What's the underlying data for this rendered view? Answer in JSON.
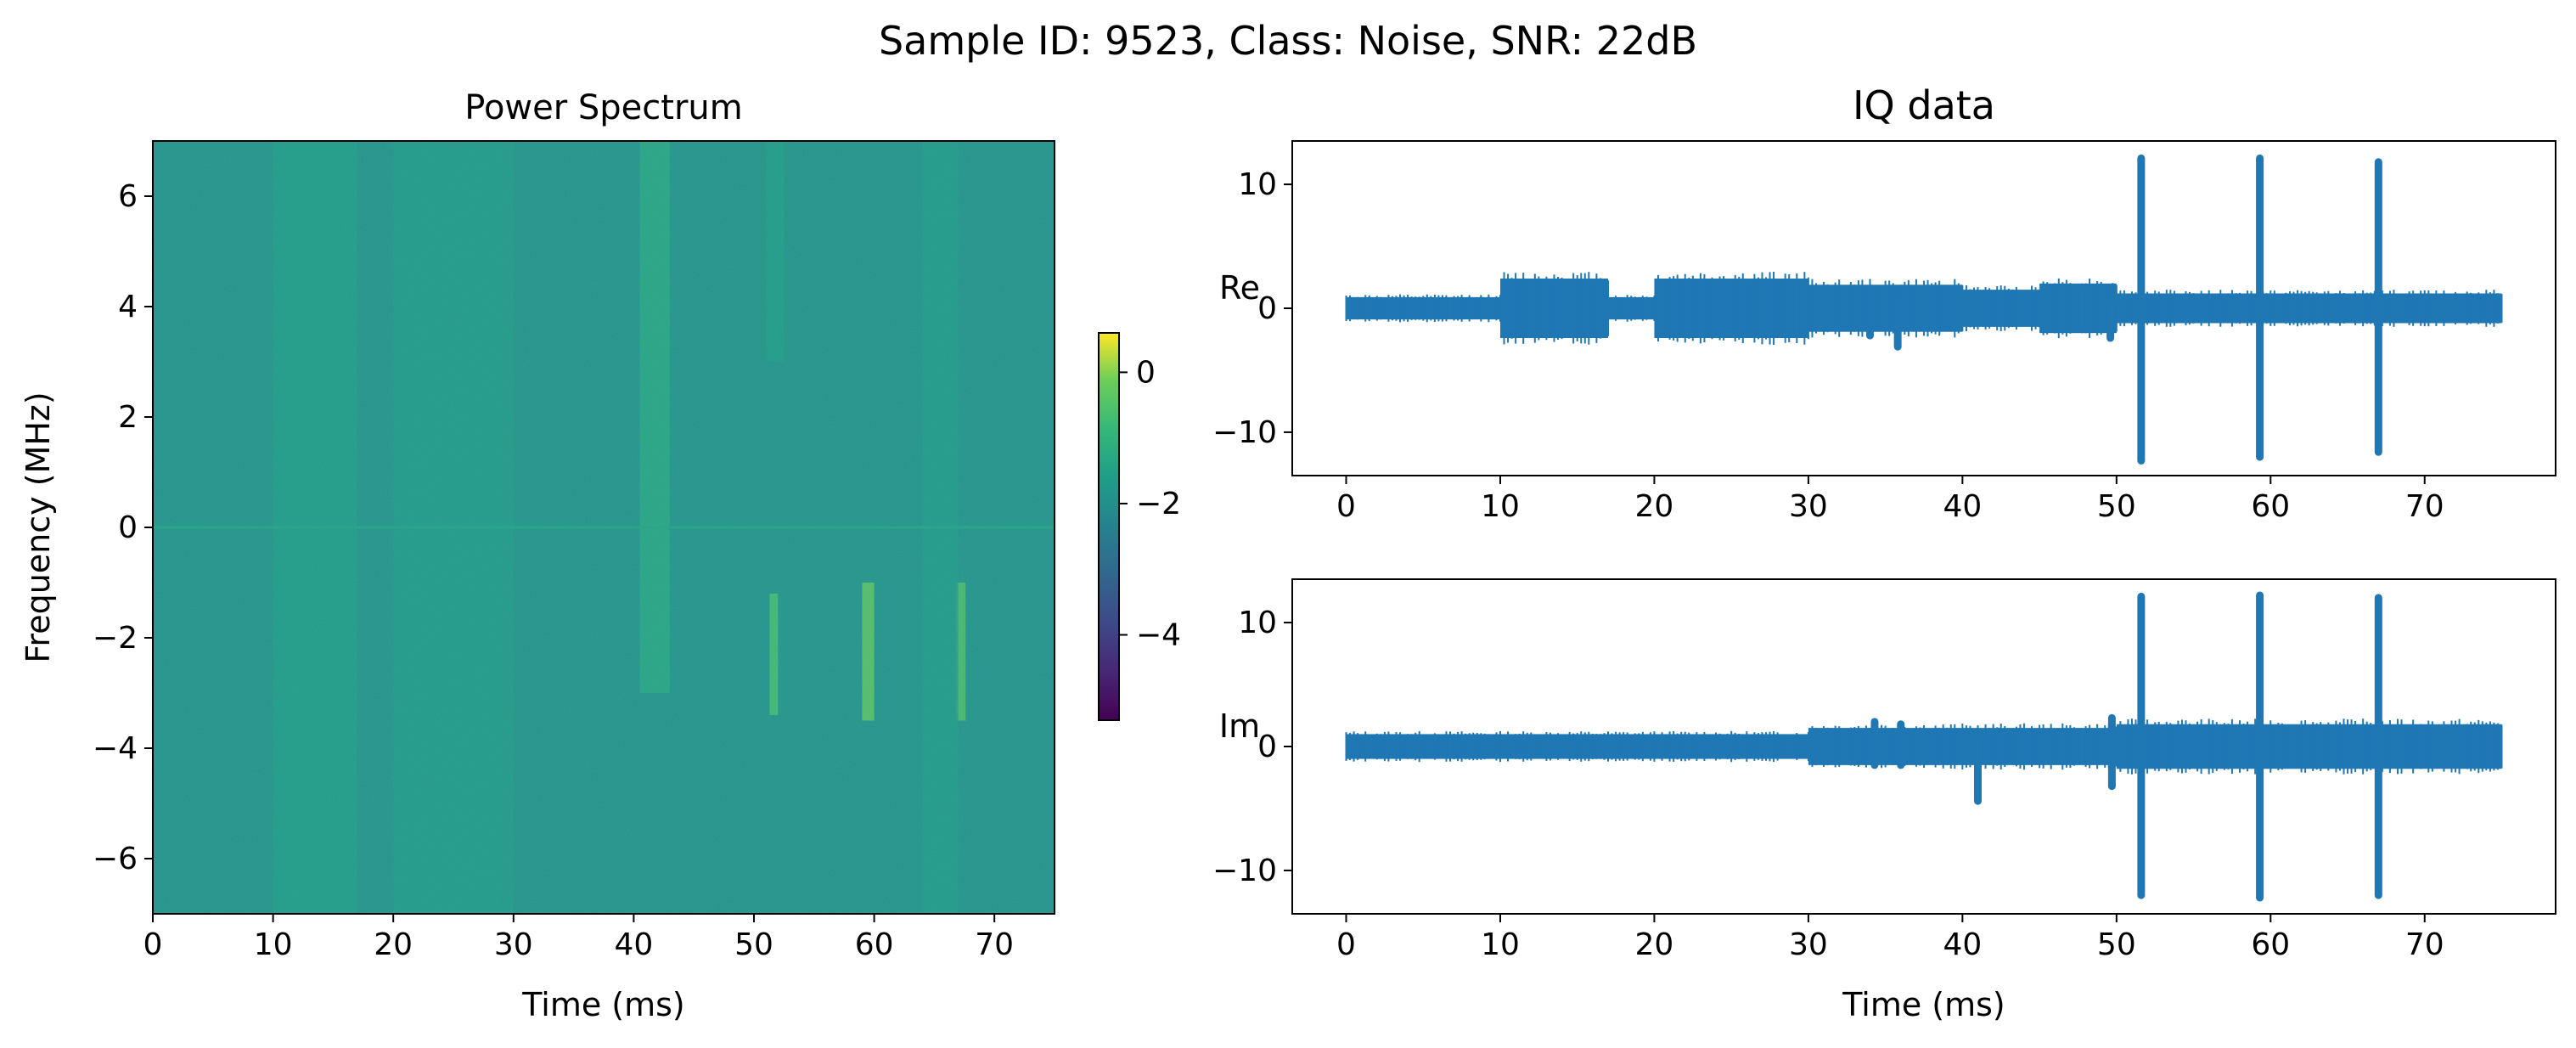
{
  "figure": {
    "suptitle": "Sample ID: 9523, Class: Noise, SNR: 22dB"
  },
  "colors": {
    "series": "#1f77b4",
    "spectrum_base": "#238a8d"
  },
  "chart_data": [
    {
      "type": "heatmap",
      "title": "Power Spectrum",
      "xlabel": "Time (ms)",
      "ylabel": "Frequency (MHz)",
      "xlim": [
        0,
        75
      ],
      "ylim": [
        -7,
        7
      ],
      "xticks": [
        "0",
        "10",
        "20",
        "30",
        "40",
        "50",
        "60",
        "70"
      ],
      "yticks": [
        "6",
        "4",
        "2",
        "0",
        "−2",
        "−4",
        "−6"
      ],
      "colormap": "viridis",
      "colorbar": {
        "range": [
          -5.3,
          0.6
        ],
        "ticks": [
          "0",
          "−2",
          "−4"
        ]
      },
      "background_level": -1.9,
      "bands": [
        {
          "t0": 10,
          "t1": 17,
          "f0": -7,
          "f1": 7,
          "level": -1.6
        },
        {
          "t0": 20,
          "t1": 30,
          "f0": -7,
          "f1": 7,
          "level": -1.7
        },
        {
          "t0": 40.5,
          "t1": 43,
          "f0": -3,
          "f1": 7,
          "level": -1.3
        },
        {
          "t0": 51,
          "t1": 52.5,
          "f0": 3,
          "f1": 7,
          "level": -1.6
        },
        {
          "t0": 51.3,
          "t1": 52,
          "f0": -3.4,
          "f1": -1.2,
          "level": -0.6
        },
        {
          "t0": 59,
          "t1": 60,
          "f0": -3.5,
          "f1": -1,
          "level": -0.3
        },
        {
          "t0": 66.8,
          "t1": 67.6,
          "f0": -3.5,
          "f1": -1,
          "level": -0.5
        },
        {
          "t0": 64,
          "t1": 67,
          "f0": -7,
          "f1": 7,
          "level": -1.7
        }
      ]
    },
    {
      "type": "line",
      "title": "IQ data",
      "ylabel": "Re",
      "xlim": [
        -3.5,
        78.5
      ],
      "ylim": [
        -13.5,
        13.5
      ],
      "xticks": [
        "0",
        "10",
        "20",
        "30",
        "40",
        "50",
        "60",
        "70"
      ],
      "yticks": [
        "10",
        "0",
        "−10"
      ],
      "segments": [
        {
          "x0": 0,
          "x1": 10,
          "amp": 0.9
        },
        {
          "x0": 10,
          "x1": 17,
          "amp": 2.4
        },
        {
          "x0": 17,
          "x1": 20,
          "amp": 0.9
        },
        {
          "x0": 20,
          "x1": 30,
          "amp": 2.4
        },
        {
          "x0": 30,
          "x1": 40,
          "amp": 1.9
        },
        {
          "x0": 40,
          "x1": 45,
          "amp": 1.5
        },
        {
          "x0": 45,
          "x1": 50,
          "amp": 2.0
        },
        {
          "x0": 50,
          "x1": 75,
          "amp": 1.2
        }
      ],
      "spikes": [
        {
          "x": 51.6,
          "ymax": 12.1,
          "ymin": -12.3
        },
        {
          "x": 59.3,
          "ymax": 12.1,
          "ymin": -12.0
        },
        {
          "x": 67.0,
          "ymax": 11.8,
          "ymin": -11.6
        },
        {
          "x": 35.8,
          "ymax": 0.5,
          "ymin": -3.1
        },
        {
          "x": 34.0,
          "ymax": 0.5,
          "ymin": -2.2
        },
        {
          "x": 49.6,
          "ymax": 0.5,
          "ymin": -2.4
        }
      ]
    },
    {
      "type": "line",
      "ylabel": "Im",
      "xlabel": "Time (ms)",
      "xlim": [
        -3.5,
        78.5
      ],
      "ylim": [
        -13.5,
        13.5
      ],
      "xticks": [
        "0",
        "10",
        "20",
        "30",
        "40",
        "50",
        "60",
        "70"
      ],
      "yticks": [
        "10",
        "0",
        "−10"
      ],
      "segments": [
        {
          "x0": 0,
          "x1": 30,
          "amp": 1.0
        },
        {
          "x0": 30,
          "x1": 50,
          "amp": 1.5
        },
        {
          "x0": 50,
          "x1": 75,
          "amp": 1.8
        }
      ],
      "spikes": [
        {
          "x": 51.6,
          "ymax": 12.1,
          "ymin": -12.0
        },
        {
          "x": 59.3,
          "ymax": 12.2,
          "ymin": -12.2
        },
        {
          "x": 67.0,
          "ymax": 12.0,
          "ymin": -12.0
        },
        {
          "x": 41.0,
          "ymax": 0.8,
          "ymin": -4.4
        },
        {
          "x": 49.7,
          "ymax": 2.3,
          "ymin": -3.2
        },
        {
          "x": 34.3,
          "ymax": 2.0,
          "ymin": -1.5
        },
        {
          "x": 36.0,
          "ymax": 1.8,
          "ymin": -1.5
        }
      ]
    }
  ]
}
